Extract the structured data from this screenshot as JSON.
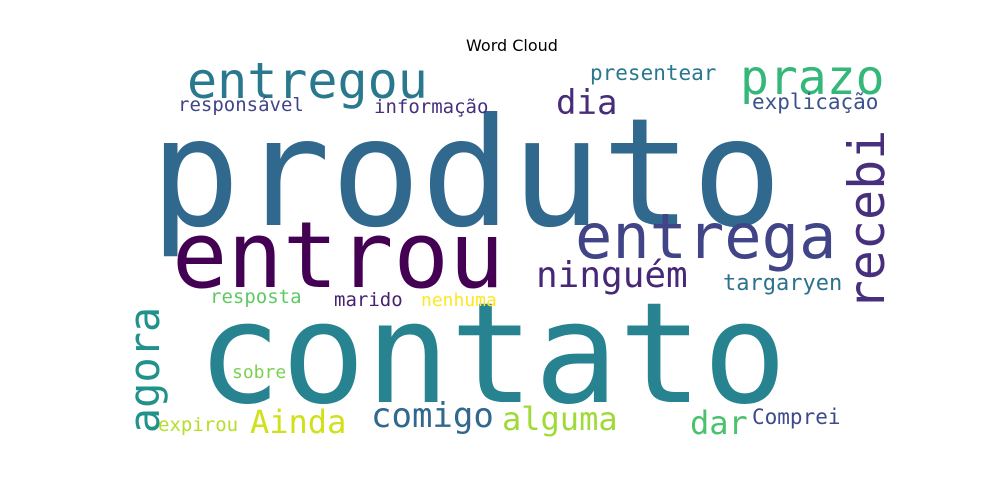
{
  "chart_data": {
    "type": "wordcloud",
    "title": "Word Cloud",
    "background": "#ffffff",
    "colormap": "viridis",
    "words": [
      {
        "text": "produto",
        "color": "#31688e"
      },
      {
        "text": "contato",
        "color": "#26838f"
      },
      {
        "text": "entrou",
        "color": "#440154"
      },
      {
        "text": "entrega",
        "color": "#414487"
      },
      {
        "text": "entregou",
        "color": "#2a788e"
      },
      {
        "text": "prazo",
        "color": "#35b779"
      },
      {
        "text": "recebi",
        "color": "#472f7d"
      },
      {
        "text": "agora",
        "color": "#21918c"
      },
      {
        "text": "ninguém",
        "color": "#472878"
      },
      {
        "text": "dia",
        "color": "#472c7a"
      },
      {
        "text": "comigo",
        "color": "#31688e"
      },
      {
        "text": "alguma",
        "color": "#a0da39"
      },
      {
        "text": "Ainda",
        "color": "#d0e11c"
      },
      {
        "text": "dar",
        "color": "#4ac16d"
      },
      {
        "text": "presentear",
        "color": "#2a788e"
      },
      {
        "text": "explicação",
        "color": "#3b528b"
      },
      {
        "text": "responsável",
        "color": "#414487"
      },
      {
        "text": "informação",
        "color": "#46307e"
      },
      {
        "text": "targaryen",
        "color": "#2c728e"
      },
      {
        "text": "resposta",
        "color": "#5ec962"
      },
      {
        "text": "marido",
        "color": "#482173"
      },
      {
        "text": "nenhuma",
        "color": "#fde725"
      },
      {
        "text": "sobre",
        "color": "#7ad151"
      },
      {
        "text": "expirou",
        "color": "#b5de2b"
      },
      {
        "text": "Comprei",
        "color": "#3e4a89"
      }
    ]
  }
}
